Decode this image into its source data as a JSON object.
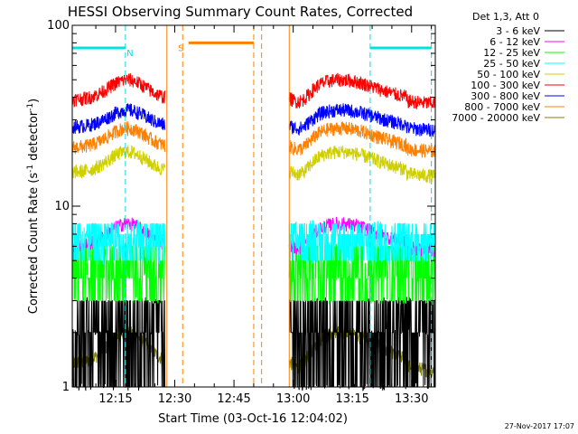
{
  "chart_data": {
    "type": "line",
    "title": "HESSI Observing Summary Count Rates, Corrected",
    "xlabel": "Start Time (03-Oct-16 12:04:02)",
    "ylabel": "Corrected Count Rate (s⁻¹ detector⁻¹)",
    "ylabel_parts": {
      "main": "Corrected Count Rate (s",
      "exp1": "-1",
      "mid": " detector",
      "exp2": "-1",
      "end": ")"
    },
    "y_scale": "log",
    "ylim": [
      1,
      100
    ],
    "xlim_minutes": [
      4.03,
      96.0
    ],
    "x_ticks": [
      {
        "min": 15,
        "label": "12:15"
      },
      {
        "min": 30,
        "label": "12:30"
      },
      {
        "min": 45,
        "label": "12:45"
      },
      {
        "min": 60,
        "label": "13:00"
      },
      {
        "min": 75,
        "label": "13:15"
      },
      {
        "min": 90,
        "label": "13:30"
      }
    ],
    "y_ticks": [
      {
        "value": 1,
        "label": "1"
      },
      {
        "value": 10,
        "label": "10"
      },
      {
        "value": 100,
        "label": "100"
      }
    ],
    "legend_header": "Det 1,3, Att 0",
    "legend_position": "right",
    "series": [
      {
        "name": "3 - 6 keV",
        "color": "#000000",
        "levels": [
          1,
          2,
          3
        ]
      },
      {
        "name": "6 - 12 keV",
        "color": "#ff00ff",
        "levels": [
          5,
          8
        ]
      },
      {
        "name": "12 - 25 keV",
        "color": "#00ff00",
        "levels": [
          3,
          4,
          5,
          6
        ]
      },
      {
        "name": "25 - 50 keV",
        "color": "#00ffff",
        "levels": [
          5,
          6,
          7,
          8
        ]
      },
      {
        "name": "50 - 100 keV",
        "color": "#d0d000",
        "levels": [
          13,
          20
        ]
      },
      {
        "name": "100 - 300 keV",
        "color": "#ff0000",
        "levels": [
          33,
          50
        ]
      },
      {
        "name": "300 - 800 keV",
        "color": "#0000ff",
        "levels": [
          24,
          34
        ]
      },
      {
        "name": "800 - 7000 keV",
        "color": "#ff8000",
        "levels": [
          18,
          27
        ]
      },
      {
        "name": "7000 - 20000 keV",
        "color": "#808000",
        "levels": [
          1,
          2
        ]
      }
    ],
    "observation_segments": [
      {
        "start": 4.03,
        "end": 27.5,
        "shape": "hump",
        "peak_at": 18
      },
      {
        "start": 59.0,
        "end": 96.0,
        "shape": "hump_dip",
        "peak_at": 72,
        "dip_at": 62
      }
    ],
    "flags": [
      {
        "label": "N",
        "color": "#00e0e0",
        "bars": [
          [
            4.03,
            17.5
          ],
          [
            79.5,
            95.0
          ]
        ],
        "markers": [
          17.5,
          79.5,
          95.0
        ],
        "value": 75
      },
      {
        "label": "S",
        "color": "#ff8000",
        "bars": [
          [
            33.5,
            50.0
          ]
        ],
        "markers": [
          32.0,
          50.0,
          52.0
        ],
        "value": 80
      }
    ],
    "timestamp": "27-Nov-2017 17:07"
  }
}
